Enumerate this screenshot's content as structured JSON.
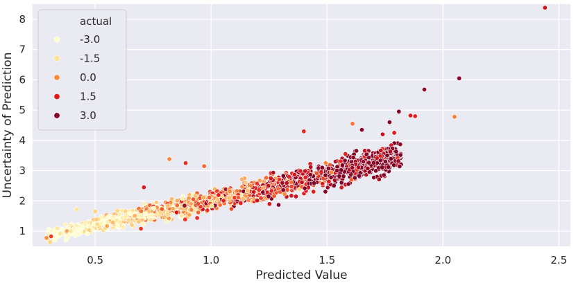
{
  "chart_data": {
    "type": "scatter",
    "title": "",
    "xlabel": "Predicted Value",
    "ylabel": "Uncertainty of Prediction",
    "xlim": [
      0.23,
      2.55
    ],
    "ylim": [
      0.5,
      8.5
    ],
    "xticks": [
      0.5,
      1.0,
      1.5,
      2.0,
      2.5
    ],
    "xtick_labels": [
      "0.5",
      "1.0",
      "1.5",
      "2.0",
      "2.5"
    ],
    "yticks": [
      1,
      2,
      3,
      4,
      5,
      6,
      7,
      8
    ],
    "ytick_labels": [
      "1",
      "2",
      "3",
      "4",
      "5",
      "6",
      "7",
      "8"
    ],
    "grid": true,
    "background_color": "#eaeaf2",
    "grid_color": "#ffffff",
    "legend": {
      "title": "actual",
      "position": "top-left",
      "entries": [
        {
          "label": "-3.0",
          "color": "#ffffcc"
        },
        {
          "label": "-1.5",
          "color": "#fee391"
        },
        {
          "label": "0.0",
          "color": "#fd8d3c"
        },
        {
          "label": "1.5",
          "color": "#e31a1c"
        },
        {
          "label": "3.0",
          "color": "#800026"
        }
      ]
    },
    "color_mapping": {
      "variable": "actual",
      "colormap": "YlOrRd",
      "range": [
        -3.0,
        3.0
      ]
    },
    "trend": {
      "note": "Dense band of ~1500 points following uncertainty ≈ 0.5 + 1.65 × predicted value; higher predicted values correspond to higher actual values (darker red).",
      "x_range": [
        0.29,
        1.82
      ],
      "approx_y_at_x": [
        [
          0.3,
          0.85
        ],
        [
          0.5,
          1.35
        ],
        [
          1.0,
          2.05
        ],
        [
          1.5,
          2.85
        ],
        [
          1.8,
          3.8
        ]
      ]
    },
    "notable_points": [
      {
        "x": 2.44,
        "y": 8.38,
        "actual": 1.8
      },
      {
        "x": 2.07,
        "y": 6.05,
        "actual": 2.8
      },
      {
        "x": 1.92,
        "y": 5.68,
        "actual": 2.8
      },
      {
        "x": 1.81,
        "y": 4.95,
        "actual": 2.9
      },
      {
        "x": 1.86,
        "y": 4.82,
        "actual": 1.6
      },
      {
        "x": 1.88,
        "y": 4.8,
        "actual": 1.4
      },
      {
        "x": 2.05,
        "y": 4.78,
        "actual": 0.2
      },
      {
        "x": 1.77,
        "y": 4.6,
        "actual": 2.9
      },
      {
        "x": 1.61,
        "y": 4.55,
        "actual": 0.3
      },
      {
        "x": 1.65,
        "y": 4.35,
        "actual": 2.9
      },
      {
        "x": 1.4,
        "y": 4.3,
        "actual": 1.3
      },
      {
        "x": 1.79,
        "y": 4.25,
        "actual": 1.6
      },
      {
        "x": 1.74,
        "y": 4.2,
        "actual": 2.0
      },
      {
        "x": 0.82,
        "y": 3.38,
        "actual": 0.1
      },
      {
        "x": 0.89,
        "y": 3.25,
        "actual": 1.2
      },
      {
        "x": 0.97,
        "y": 3.15,
        "actual": 0.5
      },
      {
        "x": 0.71,
        "y": 2.45,
        "actual": 1.5
      },
      {
        "x": 0.42,
        "y": 1.72,
        "actual": -1.5
      },
      {
        "x": 0.5,
        "y": 1.65,
        "actual": -1.2
      },
      {
        "x": 0.29,
        "y": 0.78,
        "actual": 0.0
      },
      {
        "x": 0.31,
        "y": 0.83,
        "actual": 1.0
      }
    ]
  }
}
